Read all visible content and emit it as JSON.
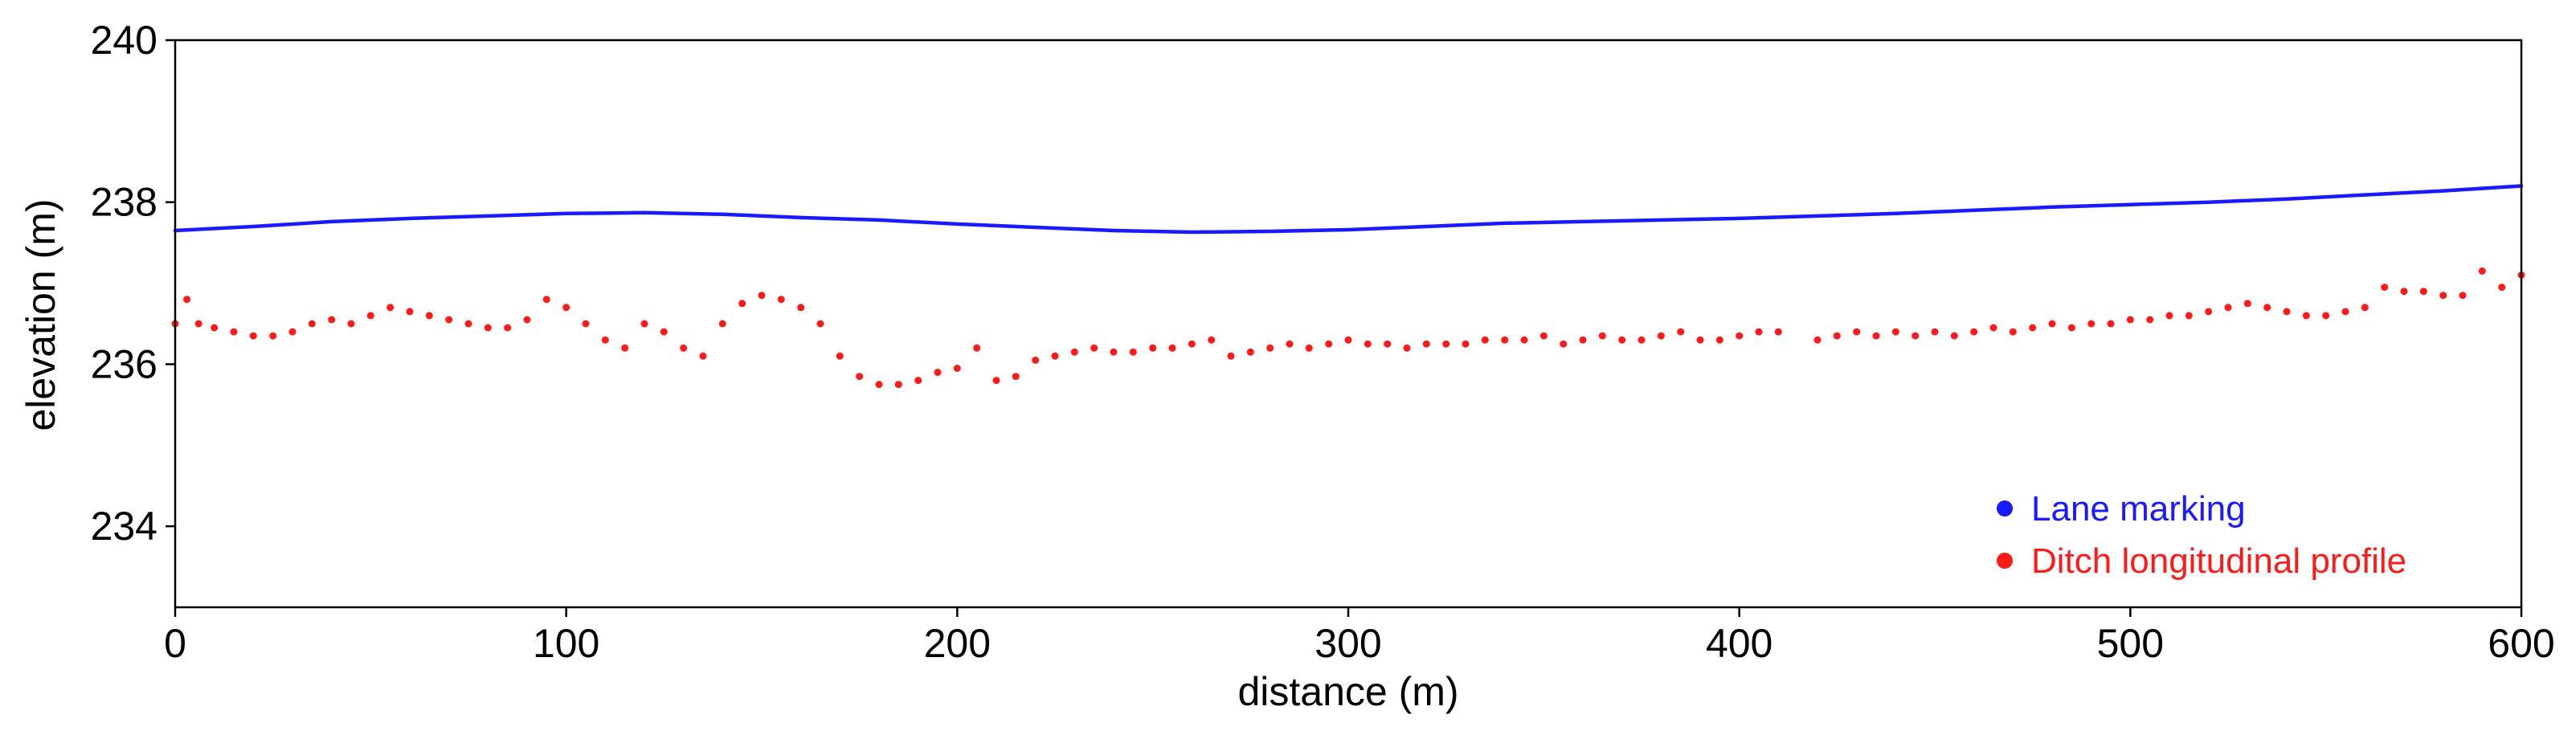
{
  "chart_data": {
    "type": "scatter",
    "title": "",
    "xlabel": "distance (m)",
    "ylabel": "elevation (m)",
    "xlim": [
      0,
      600
    ],
    "ylim": [
      233,
      240
    ],
    "xticks": [
      "0",
      "100",
      "200",
      "300",
      "400",
      "500",
      "600"
    ],
    "yticks": [
      "234",
      "236",
      "238",
      "240"
    ],
    "grid": false,
    "legend_position": "bottom-right",
    "series": [
      {
        "name": "Lane marking",
        "color": "#1a1aff",
        "render": "line",
        "x": [
          0,
          20,
          40,
          60,
          80,
          100,
          120,
          140,
          160,
          180,
          200,
          220,
          240,
          260,
          280,
          300,
          320,
          340,
          360,
          380,
          400,
          420,
          440,
          460,
          480,
          500,
          520,
          540,
          560,
          580,
          600
        ],
        "y": [
          237.65,
          237.7,
          237.76,
          237.8,
          237.83,
          237.86,
          237.87,
          237.85,
          237.81,
          237.78,
          237.73,
          237.69,
          237.65,
          237.63,
          237.64,
          237.66,
          237.7,
          237.74,
          237.76,
          237.78,
          237.8,
          237.83,
          237.86,
          237.9,
          237.94,
          237.97,
          238.0,
          238.04,
          238.09,
          238.14,
          238.2
        ]
      },
      {
        "name": "Ditch longitudinal profile",
        "color": "#ff1a1a",
        "render": "scatter",
        "x": [
          0,
          3,
          6,
          10,
          15,
          20,
          25,
          30,
          35,
          40,
          45,
          50,
          55,
          60,
          65,
          70,
          75,
          80,
          85,
          90,
          95,
          100,
          105,
          110,
          115,
          120,
          125,
          130,
          135,
          140,
          145,
          150,
          155,
          160,
          165,
          170,
          175,
          180,
          185,
          190,
          195,
          200,
          205,
          210,
          215,
          220,
          225,
          230,
          235,
          240,
          245,
          250,
          255,
          260,
          265,
          270,
          275,
          280,
          285,
          290,
          295,
          300,
          305,
          310,
          315,
          320,
          325,
          330,
          335,
          340,
          345,
          350,
          355,
          360,
          365,
          370,
          375,
          380,
          385,
          390,
          395,
          400,
          405,
          410,
          420,
          425,
          430,
          435,
          440,
          445,
          450,
          455,
          460,
          465,
          470,
          475,
          480,
          485,
          490,
          495,
          500,
          505,
          510,
          515,
          520,
          525,
          530,
          535,
          540,
          545,
          550,
          555,
          560,
          565,
          570,
          575,
          580,
          585,
          590,
          595,
          600
        ],
        "y": [
          236.5,
          236.8,
          236.5,
          236.45,
          236.4,
          236.35,
          236.35,
          236.4,
          236.5,
          236.55,
          236.5,
          236.6,
          236.7,
          236.65,
          236.6,
          236.55,
          236.5,
          236.45,
          236.45,
          236.55,
          236.8,
          236.7,
          236.5,
          236.3,
          236.2,
          236.5,
          236.4,
          236.2,
          236.1,
          236.5,
          236.75,
          236.85,
          236.8,
          236.7,
          236.5,
          236.1,
          235.85,
          235.75,
          235.75,
          235.8,
          235.9,
          235.95,
          236.2,
          235.8,
          235.85,
          236.05,
          236.1,
          236.15,
          236.2,
          236.15,
          236.15,
          236.2,
          236.2,
          236.25,
          236.3,
          236.1,
          236.15,
          236.2,
          236.25,
          236.2,
          236.25,
          236.3,
          236.25,
          236.25,
          236.2,
          236.25,
          236.25,
          236.25,
          236.3,
          236.3,
          236.3,
          236.35,
          236.25,
          236.3,
          236.35,
          236.3,
          236.3,
          236.35,
          236.4,
          236.3,
          236.3,
          236.35,
          236.4,
          236.4,
          236.3,
          236.35,
          236.4,
          236.35,
          236.4,
          236.35,
          236.4,
          236.35,
          236.4,
          236.45,
          236.4,
          236.45,
          236.5,
          236.45,
          236.5,
          236.5,
          236.55,
          236.55,
          236.6,
          236.6,
          236.65,
          236.7,
          236.75,
          236.7,
          236.65,
          236.6,
          236.6,
          236.65,
          236.7,
          236.95,
          236.9,
          236.9,
          236.85,
          236.85,
          237.15,
          236.95,
          237.1
        ]
      }
    ]
  }
}
